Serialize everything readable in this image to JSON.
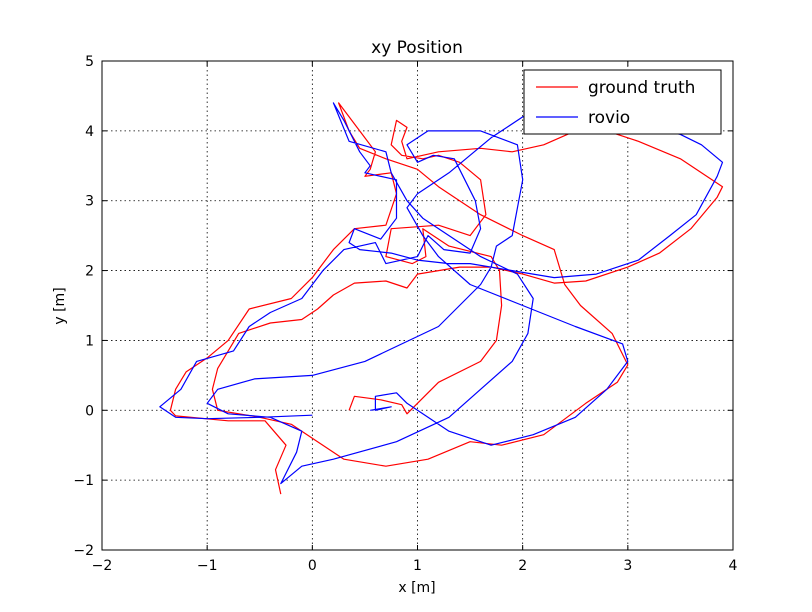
{
  "chart_data": {
    "type": "line",
    "title": "xy Position",
    "xlabel": "x [m]",
    "ylabel": "y [m]",
    "xlim": [
      -2,
      4
    ],
    "ylim": [
      -2,
      5
    ],
    "xticks": [
      -2,
      -1,
      0,
      1,
      2,
      3,
      4
    ],
    "yticks": [
      -2,
      -1,
      0,
      1,
      2,
      3,
      4,
      5
    ],
    "xtick_labels": [
      "−2",
      "−1",
      "0",
      "1",
      "2",
      "3",
      "4"
    ],
    "ytick_labels": [
      "−2",
      "−1",
      "0",
      "1",
      "2",
      "3",
      "4",
      "5"
    ],
    "grid": true,
    "legend_position": "top-right",
    "series": [
      {
        "name": "ground truth",
        "color": "#ff0000",
        "points": [
          [
            0.35,
            0.0
          ],
          [
            0.4,
            0.2
          ],
          [
            0.65,
            0.15
          ],
          [
            0.85,
            0.08
          ],
          [
            0.9,
            -0.05
          ],
          [
            1.2,
            0.4
          ],
          [
            1.6,
            0.7
          ],
          [
            1.75,
            1.0
          ],
          [
            1.8,
            1.5
          ],
          [
            1.78,
            2.0
          ],
          [
            1.7,
            2.2
          ],
          [
            1.3,
            2.35
          ],
          [
            1.05,
            2.6
          ],
          [
            1.08,
            2.2
          ],
          [
            0.95,
            2.1
          ],
          [
            0.7,
            2.2
          ],
          [
            0.75,
            2.6
          ],
          [
            1.2,
            2.65
          ],
          [
            1.5,
            2.5
          ],
          [
            1.65,
            2.8
          ],
          [
            1.6,
            3.3
          ],
          [
            1.4,
            3.55
          ],
          [
            1.3,
            3.6
          ],
          [
            1.2,
            3.65
          ],
          [
            1.05,
            3.6
          ],
          [
            0.85,
            3.65
          ],
          [
            0.75,
            3.8
          ],
          [
            0.8,
            4.15
          ],
          [
            0.9,
            4.05
          ],
          [
            0.85,
            3.85
          ],
          [
            0.9,
            3.6
          ],
          [
            1.2,
            3.7
          ],
          [
            1.6,
            3.75
          ],
          [
            1.9,
            3.7
          ],
          [
            2.2,
            3.8
          ],
          [
            2.5,
            4.0
          ],
          [
            2.8,
            4.0
          ],
          [
            3.1,
            3.85
          ],
          [
            3.5,
            3.6
          ],
          [
            3.75,
            3.35
          ],
          [
            3.9,
            3.2
          ],
          [
            3.85,
            3.05
          ],
          [
            3.6,
            2.6
          ],
          [
            3.3,
            2.25
          ],
          [
            3.0,
            2.05
          ],
          [
            2.6,
            1.85
          ],
          [
            2.3,
            1.82
          ],
          [
            2.0,
            1.95
          ],
          [
            1.7,
            2.05
          ],
          [
            1.4,
            2.05
          ],
          [
            1.0,
            1.95
          ],
          [
            0.9,
            1.75
          ],
          [
            0.7,
            1.85
          ],
          [
            0.4,
            1.82
          ],
          [
            0.2,
            1.65
          ],
          [
            0.05,
            1.45
          ],
          [
            -0.1,
            1.3
          ],
          [
            -0.4,
            1.25
          ],
          [
            -0.7,
            1.1
          ],
          [
            -0.9,
            0.6
          ],
          [
            -0.95,
            0.3
          ],
          [
            -0.9,
            0.0
          ],
          [
            -0.5,
            -0.1
          ],
          [
            -0.2,
            -0.2
          ],
          [
            0.0,
            -0.4
          ],
          [
            0.3,
            -0.7
          ],
          [
            0.7,
            -0.8
          ],
          [
            1.1,
            -0.7
          ],
          [
            1.5,
            -0.45
          ],
          [
            1.8,
            -0.5
          ],
          [
            2.2,
            -0.35
          ],
          [
            2.6,
            0.1
          ],
          [
            2.9,
            0.4
          ],
          [
            3.0,
            0.65
          ],
          [
            2.85,
            1.1
          ],
          [
            2.55,
            1.5
          ],
          [
            2.4,
            1.8
          ],
          [
            2.3,
            2.3
          ],
          [
            2.0,
            2.5
          ],
          [
            1.6,
            2.8
          ],
          [
            1.2,
            3.2
          ],
          [
            1.0,
            3.45
          ],
          [
            0.7,
            3.6
          ],
          [
            0.45,
            3.75
          ],
          [
            0.35,
            4.0
          ],
          [
            0.25,
            4.4
          ],
          [
            0.45,
            4.0
          ],
          [
            0.6,
            3.7
          ],
          [
            0.55,
            3.45
          ],
          [
            0.5,
            3.35
          ],
          [
            0.75,
            3.4
          ],
          [
            0.8,
            3.1
          ],
          [
            0.7,
            2.65
          ],
          [
            0.4,
            2.6
          ],
          [
            0.2,
            2.3
          ],
          [
            0.0,
            1.9
          ],
          [
            -0.2,
            1.6
          ],
          [
            -0.6,
            1.45
          ],
          [
            -0.8,
            1.0
          ],
          [
            -1.0,
            0.75
          ],
          [
            -1.2,
            0.55
          ],
          [
            -1.3,
            0.3
          ],
          [
            -1.35,
            0.0
          ],
          [
            -1.3,
            -0.08
          ],
          [
            -0.8,
            -0.15
          ],
          [
            -0.45,
            -0.15
          ],
          [
            -0.25,
            -0.5
          ],
          [
            -0.35,
            -0.85
          ],
          [
            -0.3,
            -1.2
          ]
        ]
      },
      {
        "name": "rovio",
        "color": "#0000ff",
        "points": [
          [
            0.0,
            -0.07
          ],
          [
            -0.5,
            -0.1
          ],
          [
            -1.0,
            -0.12
          ],
          [
            -1.3,
            -0.1
          ],
          [
            -1.45,
            0.05
          ],
          [
            -1.25,
            0.3
          ],
          [
            -1.1,
            0.7
          ],
          [
            -0.75,
            0.85
          ],
          [
            -0.6,
            1.2
          ],
          [
            -0.4,
            1.4
          ],
          [
            -0.1,
            1.6
          ],
          [
            0.1,
            2.0
          ],
          [
            0.3,
            2.3
          ],
          [
            0.6,
            2.4
          ],
          [
            0.7,
            2.1
          ],
          [
            1.0,
            2.2
          ],
          [
            1.1,
            2.5
          ],
          [
            1.25,
            2.3
          ],
          [
            1.5,
            2.25
          ],
          [
            1.6,
            2.6
          ],
          [
            1.55,
            3.0
          ],
          [
            1.35,
            3.6
          ],
          [
            1.15,
            3.65
          ],
          [
            1.0,
            3.55
          ],
          [
            0.9,
            3.8
          ],
          [
            1.1,
            4.0
          ],
          [
            1.6,
            4.0
          ],
          [
            1.95,
            3.8
          ],
          [
            2.0,
            3.3
          ],
          [
            1.9,
            2.5
          ],
          [
            1.75,
            2.35
          ],
          [
            1.7,
            2.05
          ],
          [
            1.6,
            1.8
          ],
          [
            1.2,
            1.2
          ],
          [
            0.5,
            0.7
          ],
          [
            0.0,
            0.5
          ],
          [
            -0.55,
            0.45
          ],
          [
            -0.9,
            0.3
          ],
          [
            -1.0,
            0.1
          ],
          [
            -0.8,
            -0.05
          ],
          [
            -0.4,
            -0.1
          ],
          [
            -0.1,
            -0.3
          ],
          [
            -0.15,
            -0.6
          ],
          [
            -0.3,
            -1.05
          ],
          [
            -0.1,
            -0.8
          ],
          [
            0.2,
            -0.7
          ],
          [
            0.8,
            -0.45
          ],
          [
            1.3,
            -0.1
          ],
          [
            1.6,
            0.3
          ],
          [
            1.9,
            0.7
          ],
          [
            2.05,
            1.1
          ],
          [
            2.1,
            1.6
          ],
          [
            1.95,
            1.95
          ],
          [
            1.6,
            2.2
          ],
          [
            1.3,
            2.5
          ],
          [
            1.05,
            2.75
          ],
          [
            0.9,
            3.0
          ],
          [
            0.75,
            3.4
          ],
          [
            0.7,
            3.7
          ],
          [
            0.35,
            3.85
          ],
          [
            0.2,
            4.4
          ],
          [
            0.3,
            4.15
          ],
          [
            0.45,
            3.7
          ],
          [
            0.55,
            3.5
          ],
          [
            0.5,
            3.4
          ],
          [
            0.8,
            3.3
          ],
          [
            0.8,
            2.75
          ],
          [
            0.65,
            2.45
          ],
          [
            0.4,
            2.6
          ],
          [
            0.35,
            2.4
          ],
          [
            0.45,
            2.3
          ],
          [
            0.75,
            2.25
          ],
          [
            1.0,
            2.15
          ],
          [
            1.3,
            2.1
          ],
          [
            1.5,
            2.1
          ],
          [
            1.9,
            2.0
          ],
          [
            2.3,
            1.9
          ],
          [
            2.7,
            1.95
          ],
          [
            3.1,
            2.15
          ],
          [
            3.4,
            2.5
          ],
          [
            3.65,
            2.8
          ],
          [
            3.85,
            3.35
          ],
          [
            3.9,
            3.55
          ],
          [
            3.7,
            3.8
          ],
          [
            3.5,
            3.95
          ],
          [
            3.2,
            4.05
          ],
          [
            2.8,
            4.15
          ],
          [
            2.3,
            4.25
          ],
          [
            2.0,
            4.2
          ],
          [
            1.7,
            3.9
          ],
          [
            1.3,
            3.4
          ],
          [
            1.0,
            3.1
          ],
          [
            0.9,
            2.9
          ],
          [
            1.05,
            2.5
          ],
          [
            1.2,
            2.2
          ],
          [
            1.5,
            1.8
          ],
          [
            2.0,
            1.5
          ],
          [
            2.5,
            1.2
          ],
          [
            2.95,
            0.95
          ],
          [
            3.0,
            0.7
          ],
          [
            2.8,
            0.3
          ],
          [
            2.5,
            -0.1
          ],
          [
            2.1,
            -0.35
          ],
          [
            1.7,
            -0.5
          ],
          [
            1.3,
            -0.3
          ],
          [
            0.9,
            0.1
          ],
          [
            0.8,
            0.25
          ],
          [
            0.6,
            0.2
          ],
          [
            0.6,
            0.0
          ],
          [
            0.75,
            0.05
          ],
          [
            0.55,
            0.0
          ]
        ]
      }
    ]
  }
}
